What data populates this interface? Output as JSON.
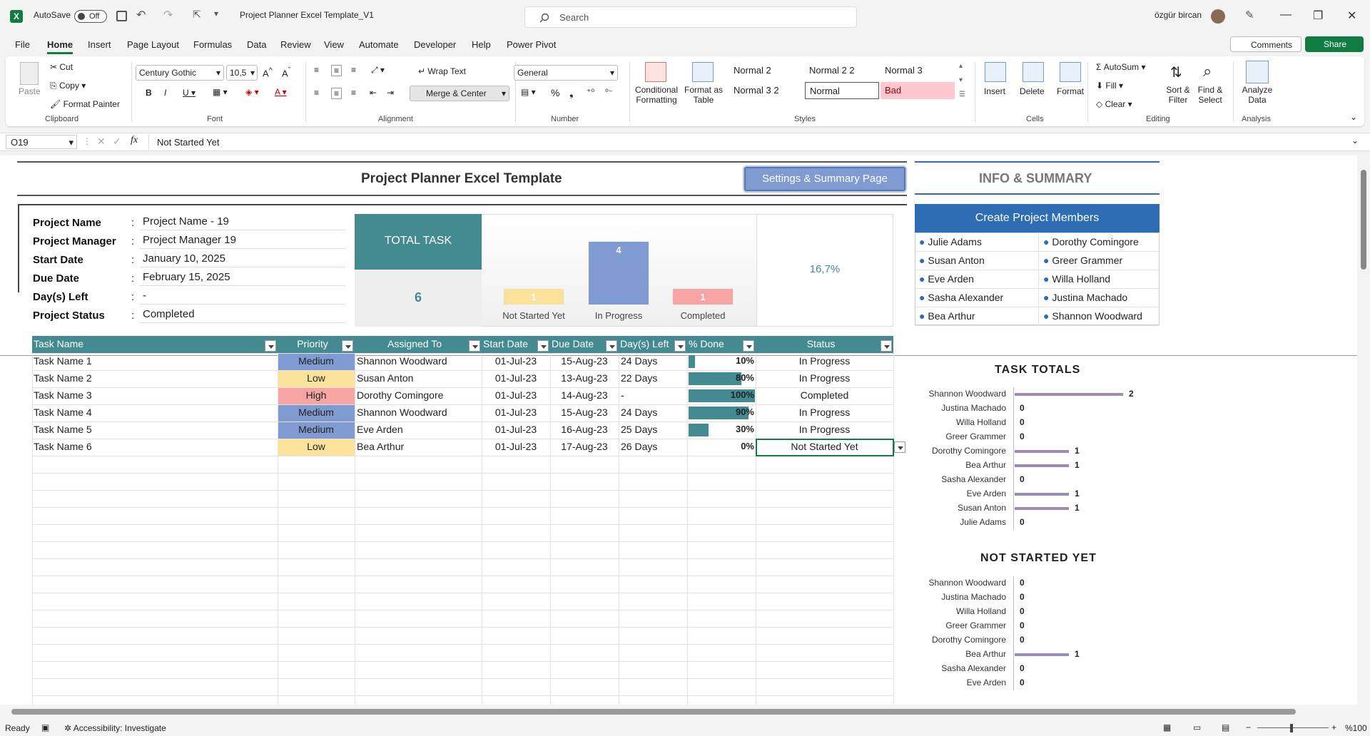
{
  "titlebar": {
    "autosave_label": "AutoSave",
    "autosave_state": "Off",
    "file_title": "Project Planner Excel Template_V1",
    "search_placeholder": "Search",
    "user_name": "özgür bircan"
  },
  "menu": {
    "items": [
      "File",
      "Home",
      "Insert",
      "Page Layout",
      "Formulas",
      "Data",
      "Review",
      "View",
      "Automate",
      "Developer",
      "Help",
      "Power Pivot"
    ],
    "comments": "Comments",
    "share": "Share"
  },
  "ribbon": {
    "clipboard": {
      "paste": "Paste",
      "cut": "Cut",
      "copy": "Copy",
      "format_painter": "Format Painter",
      "group": "Clipboard"
    },
    "font": {
      "name": "Century Gothic",
      "size": "10,5",
      "group": "Font"
    },
    "alignment": {
      "wrap_text": "Wrap Text",
      "merge_center": "Merge & Center",
      "group": "Alignment"
    },
    "number": {
      "format": "General",
      "group": "Number"
    },
    "styles": {
      "conditional": "Conditional Formatting",
      "format_table": "Format as Table",
      "cells": [
        "Normal 2",
        "Normal 2 2",
        "Normal 3",
        "Normal 3 2",
        "Normal",
        "Bad"
      ],
      "group": "Styles",
      "bad_color": "#ffc7ce"
    },
    "cells": {
      "insert": "Insert",
      "delete": "Delete",
      "format": "Format",
      "group": "Cells"
    },
    "editing": {
      "autosum": "AutoSum",
      "fill": "Fill",
      "clear": "Clear",
      "sort_filter": "Sort & Filter",
      "find_select": "Find & Select",
      "group": "Editing"
    },
    "analysis": {
      "analyze": "Analyze Data",
      "group": "Analysis"
    }
  },
  "formula_bar": {
    "name_box": "O19",
    "formula": "Not Started Yet"
  },
  "sheet": {
    "title": "Project Planner Excel Template",
    "settings_button": "Settings & Summary Page",
    "info_title": "INFO & SUMMARY",
    "project_info": [
      {
        "label": "Project Name",
        "value": "Project Name - 19"
      },
      {
        "label": "Project Manager",
        "value": "Project Manager 19"
      },
      {
        "label": "Start Date",
        "value": "January 10, 2025"
      },
      {
        "label": "Due Date",
        "value": "February 15, 2025"
      },
      {
        "label": "Day(s) Left",
        "value": "-"
      },
      {
        "label": "Project Status",
        "value": "Completed"
      }
    ],
    "total_task_label": "TOTAL TASK",
    "total_task_value": "6",
    "percent_complete": "16,7%",
    "status_chart": {
      "type": "bar",
      "categories": [
        "Not Started Yet",
        "In Progress",
        "Completed"
      ],
      "values": [
        1,
        4,
        1
      ],
      "colors": [
        "#fbe29a",
        "#7f9bd1",
        "#f6a4a4"
      ]
    },
    "create_members": "Create Project Members",
    "members": [
      "Julie Adams",
      "Dorothy Comingore",
      "Susan Anton",
      "Greer Grammer",
      "Eve Arden",
      "Willa Holland",
      "Sasha Alexander",
      "Justina Machado",
      "Bea Arthur",
      "Shannon Woodward"
    ],
    "table_headers": [
      "Task Name",
      "Priority",
      "Assigned To",
      "Start Date",
      "Due Date",
      "Day(s) Left",
      "% Done",
      "Status"
    ],
    "tasks": [
      {
        "name": "Task Name 1",
        "priority": "Medium",
        "assigned": "Shannon Woodward",
        "start": "01-Jul-23",
        "due": "15-Aug-23",
        "left": "24 Days",
        "done": "10%",
        "done_frac": 0.1,
        "status": "In Progress"
      },
      {
        "name": "Task Name 2",
        "priority": "Low",
        "assigned": "Susan Anton",
        "start": "01-Jul-23",
        "due": "13-Aug-23",
        "left": "22 Days",
        "done": "80%",
        "done_frac": 0.8,
        "status": "In Progress"
      },
      {
        "name": "Task Name 3",
        "priority": "High",
        "assigned": "Dorothy Comingore",
        "start": "01-Jul-23",
        "due": "14-Aug-23",
        "left": "-",
        "done": "100%",
        "done_frac": 1.0,
        "status": "Completed"
      },
      {
        "name": "Task Name 4",
        "priority": "Medium",
        "assigned": "Shannon Woodward",
        "start": "01-Jul-23",
        "due": "15-Aug-23",
        "left": "24 Days",
        "done": "90%",
        "done_frac": 0.9,
        "status": "In Progress"
      },
      {
        "name": "Task Name 5",
        "priority": "Medium",
        "assigned": "Eve Arden",
        "start": "01-Jul-23",
        "due": "16-Aug-23",
        "left": "25 Days",
        "done": "30%",
        "done_frac": 0.3,
        "status": "In Progress"
      },
      {
        "name": "Task Name 6",
        "priority": "Low",
        "assigned": "Bea Arthur",
        "start": "01-Jul-23",
        "due": "17-Aug-23",
        "left": "26 Days",
        "done": "0%",
        "done_frac": 0.0,
        "status": "Not Started Yet"
      }
    ],
    "priority_colors": {
      "Medium": "#7f9bd1",
      "Low": "#fbe29a",
      "High": "#f6a4a4"
    },
    "task_totals_title": "TASK TOTALS",
    "task_totals": {
      "type": "bar",
      "categories": [
        "Shannon Woodward",
        "Justina Machado",
        "Willa Holland",
        "Greer Grammer",
        "Dorothy Comingore",
        "Bea Arthur",
        "Sasha Alexander",
        "Eve Arden",
        "Susan Anton",
        "Julie Adams"
      ],
      "values": [
        2,
        0,
        0,
        0,
        1,
        1,
        0,
        1,
        1,
        0
      ]
    },
    "not_started_title": "NOT STARTED YET",
    "not_started": {
      "type": "bar",
      "categories": [
        "Shannon Woodward",
        "Justina Machado",
        "Willa Holland",
        "Greer Grammer",
        "Dorothy Comingore",
        "Bea Arthur",
        "Sasha Alexander",
        "Eve Arden"
      ],
      "values": [
        0,
        0,
        0,
        0,
        0,
        1,
        0,
        0
      ]
    }
  },
  "statusbar": {
    "ready": "Ready",
    "accessibility": "Accessibility: Investigate",
    "zoom": "%100"
  }
}
